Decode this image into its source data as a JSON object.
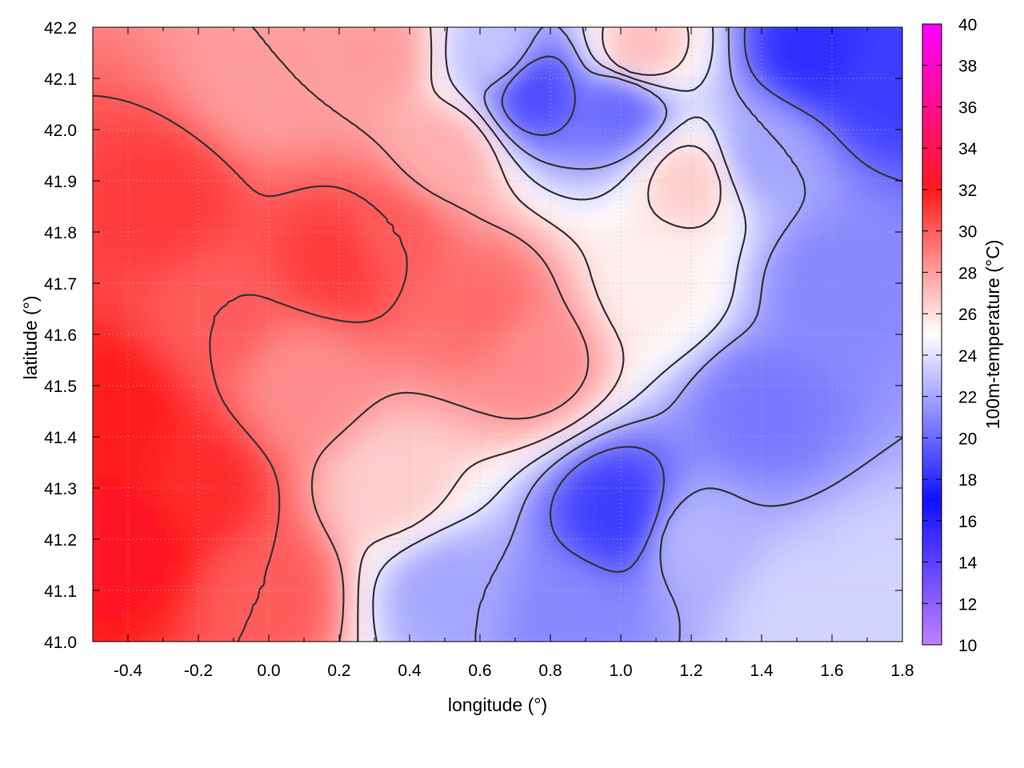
{
  "chart_data": {
    "type": "heatmap",
    "title": "",
    "xlabel": "longitude (°)",
    "ylabel": "latitude (°)",
    "colorbar_label": "100m-temperature (°C)",
    "xlim": [
      -0.5,
      1.8
    ],
    "ylim": [
      41.0,
      42.2
    ],
    "x_ticks": [
      "-0.4",
      "-0.2",
      "0.0",
      "0.2",
      "0.4",
      "0.6",
      "0.8",
      "1.0",
      "1.2",
      "1.4",
      "1.6",
      "1.8"
    ],
    "y_ticks": [
      "41.0",
      "41.1",
      "41.2",
      "41.3",
      "41.4",
      "41.5",
      "41.6",
      "41.7",
      "41.8",
      "41.9",
      "42.0",
      "42.1",
      "42.2"
    ],
    "colorbar_range": [
      10,
      40
    ],
    "colorbar_ticks": [
      "10",
      "12",
      "14",
      "16",
      "18",
      "20",
      "22",
      "24",
      "26",
      "28",
      "30",
      "32",
      "34",
      "36",
      "38",
      "40"
    ],
    "colorscale": [
      {
        "v": 10,
        "color": "#c080ff"
      },
      {
        "v": 17,
        "color": "#1010ff"
      },
      {
        "v": 25,
        "color": "#ffffff"
      },
      {
        "v": 32,
        "color": "#ff1a1a"
      },
      {
        "v": 40,
        "color": "#ff00ff"
      }
    ],
    "grid": true,
    "contour_color": "#333333",
    "temperature_field": [
      {
        "lon": -0.4,
        "lat": 41.2,
        "t": 32.5
      },
      {
        "lon": -0.45,
        "lat": 41.45,
        "t": 32
      },
      {
        "lon": -0.3,
        "lat": 41.85,
        "t": 31
      },
      {
        "lon": -0.15,
        "lat": 41.65,
        "t": 30
      },
      {
        "lon": -0.2,
        "lat": 41.3,
        "t": 31.5
      },
      {
        "lon": 0.0,
        "lat": 41.1,
        "t": 30
      },
      {
        "lon": 0.1,
        "lat": 41.5,
        "t": 28.5
      },
      {
        "lon": 0.2,
        "lat": 41.75,
        "t": 31
      },
      {
        "lon": 0.35,
        "lat": 41.8,
        "t": 30
      },
      {
        "lon": 0.6,
        "lat": 41.65,
        "t": 29.5
      },
      {
        "lon": 0.75,
        "lat": 41.55,
        "t": 28.5
      },
      {
        "lon": 0.5,
        "lat": 41.95,
        "t": 27.5
      },
      {
        "lon": 0.3,
        "lat": 42.15,
        "t": 28
      },
      {
        "lon": 0.0,
        "lat": 42.1,
        "t": 28
      },
      {
        "lon": 0.35,
        "lat": 41.3,
        "t": 26.5
      },
      {
        "lon": 0.5,
        "lat": 41.1,
        "t": 22
      },
      {
        "lon": 0.85,
        "lat": 41.05,
        "t": 21
      },
      {
        "lon": 1.0,
        "lat": 41.25,
        "t": 18.5
      },
      {
        "lon": 1.2,
        "lat": 41.2,
        "t": 22.5
      },
      {
        "lon": 1.5,
        "lat": 41.05,
        "t": 23.5
      },
      {
        "lon": 1.75,
        "lat": 41.1,
        "t": 23.5
      },
      {
        "lon": 1.4,
        "lat": 41.45,
        "t": 20.5
      },
      {
        "lon": 1.6,
        "lat": 41.7,
        "t": 21
      },
      {
        "lon": 1.4,
        "lat": 41.95,
        "t": 22
      },
      {
        "lon": 1.55,
        "lat": 42.15,
        "t": 18
      },
      {
        "lon": 1.75,
        "lat": 42.1,
        "t": 18.5
      },
      {
        "lon": 1.0,
        "lat": 42.05,
        "t": 20
      },
      {
        "lon": 0.75,
        "lat": 42.08,
        "t": 19
      },
      {
        "lon": 0.65,
        "lat": 42.15,
        "t": 23
      },
      {
        "lon": 1.1,
        "lat": 41.7,
        "t": 25.5
      },
      {
        "lon": 1.2,
        "lat": 41.9,
        "t": 26.5
      },
      {
        "lon": 1.05,
        "lat": 42.15,
        "t": 27
      }
    ]
  }
}
